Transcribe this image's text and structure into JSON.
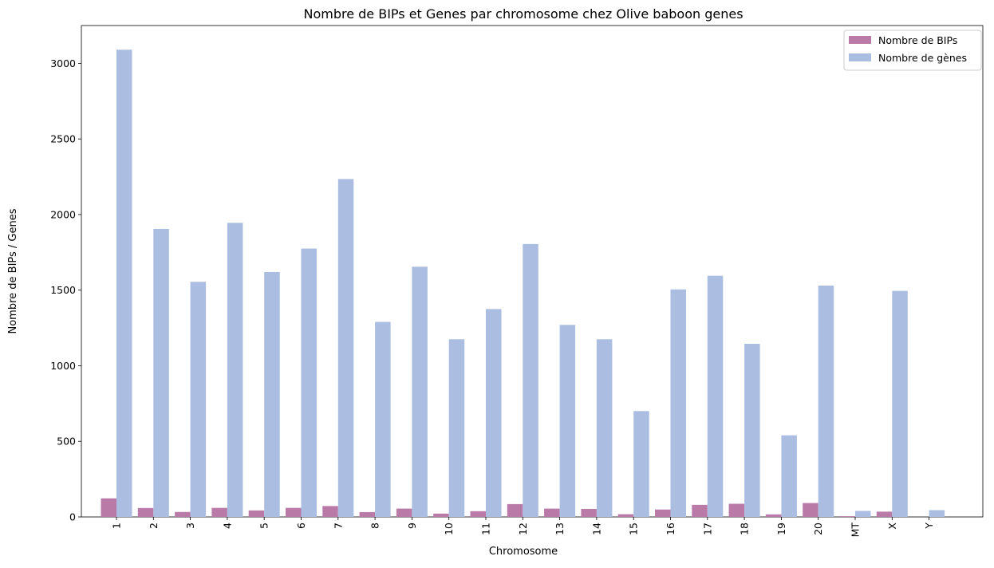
{
  "chart_data": {
    "type": "bar",
    "title": "Nombre de BIPs et Genes par chromosome chez Olive baboon genes",
    "xlabel": "Chromosome",
    "ylabel": "Nombre de BIPs / Genes",
    "ylim": [
      0,
      3250
    ],
    "yticks": [
      0,
      500,
      1000,
      1500,
      2000,
      2500,
      3000
    ],
    "grid": false,
    "legend_position": "top-right",
    "categories": [
      "1",
      "2",
      "3",
      "4",
      "5",
      "6",
      "7",
      "8",
      "9",
      "10",
      "11",
      "12",
      "13",
      "14",
      "15",
      "16",
      "17",
      "18",
      "19",
      "20",
      "MT",
      "X",
      "Y"
    ],
    "series": [
      {
        "name": "Nombre de BIPs",
        "color": "#b97aa8",
        "values": [
          123,
          59,
          33,
          60,
          43,
          60,
          72,
          32,
          55,
          22,
          38,
          85,
          55,
          53,
          18,
          49,
          80,
          87,
          17,
          92,
          5,
          35,
          0
        ]
      },
      {
        "name": "Nombre de gènes",
        "color": "#abbde0",
        "values": [
          3090,
          1905,
          1555,
          1945,
          1620,
          1775,
          2235,
          1290,
          1655,
          1175,
          1375,
          1805,
          1270,
          1175,
          700,
          1505,
          1595,
          1145,
          540,
          1530,
          40,
          1495,
          45
        ]
      }
    ]
  }
}
